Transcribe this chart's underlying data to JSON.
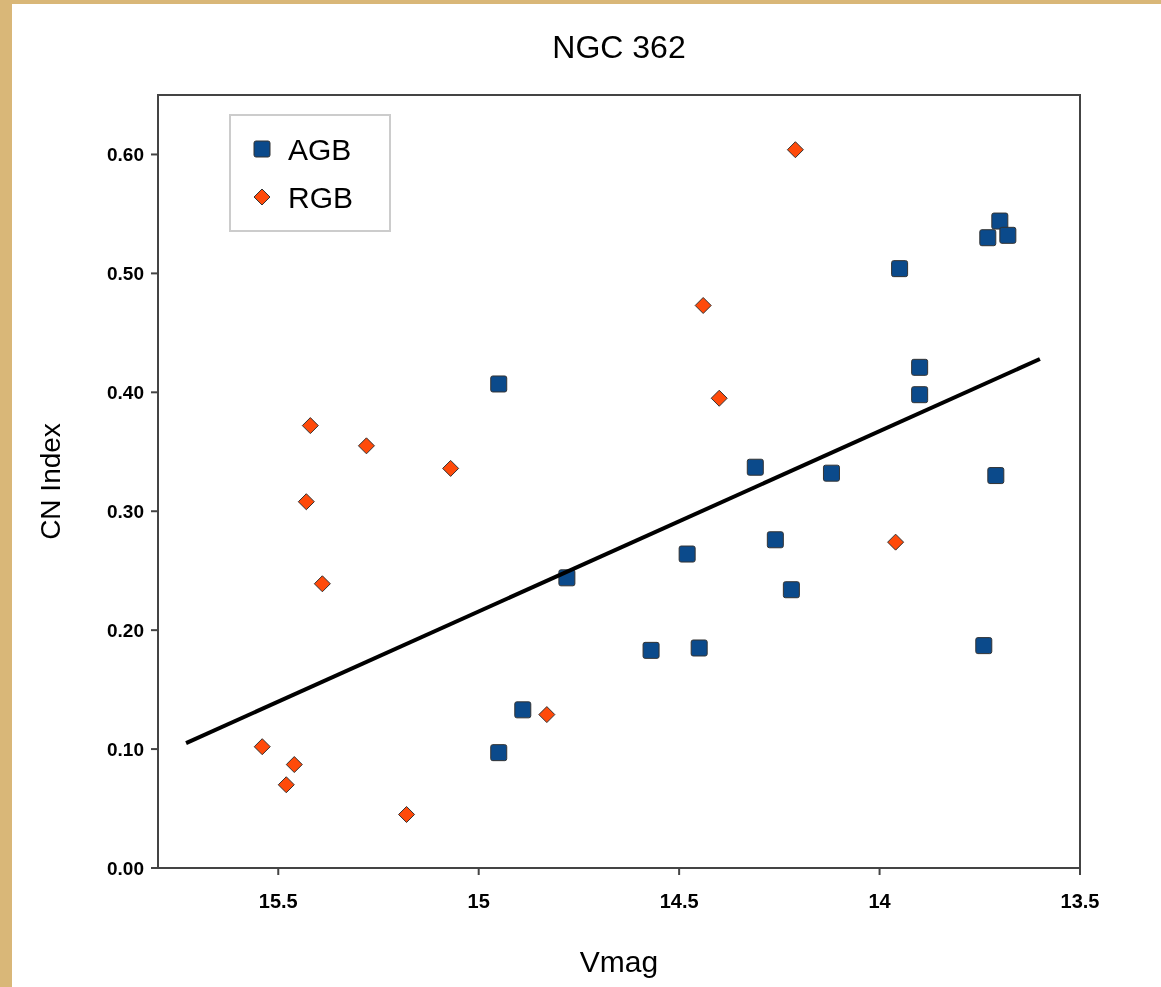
{
  "chart_data": {
    "type": "scatter",
    "title": "NGC 362",
    "xlabel": "Vmag",
    "ylabel": "CN Index",
    "xlim": [
      15.8,
      13.5
    ],
    "xticks": [
      15.5,
      15,
      14.5,
      14,
      13.5
    ],
    "ylim": [
      0,
      0.65
    ],
    "yticks": [
      {
        "value": 0,
        "label": "0.00"
      },
      {
        "value": 0.1,
        "label": "0.10"
      },
      {
        "value": 0.2,
        "label": "0.20"
      },
      {
        "value": 0.3,
        "label": "0.30"
      },
      {
        "value": 0.4,
        "label": "0.40"
      },
      {
        "value": 0.5,
        "label": "0.50"
      },
      {
        "value": 0.6,
        "label": "0.60"
      }
    ],
    "grid": false,
    "legend": "top left",
    "series": [
      {
        "name": "AGB",
        "color": "#0b4a8b",
        "marker": "square",
        "x": [
          13.7,
          13.68,
          13.73,
          13.95,
          13.9,
          13.9,
          14.31,
          14.12,
          13.71,
          14.26,
          14.48,
          14.22,
          14.57,
          14.45,
          13.74,
          14.95,
          14.78,
          14.89,
          14.95
        ],
        "values": [
          0.544,
          0.532,
          0.53,
          0.504,
          0.421,
          0.398,
          0.337,
          0.332,
          0.33,
          0.276,
          0.264,
          0.234,
          0.183,
          0.185,
          0.187,
          0.407,
          0.244,
          0.133,
          0.097
        ]
      },
      {
        "name": "RGB",
        "color": "#ff4a0a",
        "marker": "diamond",
        "x": [
          15.42,
          15.28,
          15.07,
          15.43,
          15.39,
          15.54,
          15.46,
          15.48,
          15.18,
          14.83,
          14.21,
          14.44,
          14.4,
          13.96
        ],
        "values": [
          0.372,
          0.355,
          0.336,
          0.308,
          0.239,
          0.102,
          0.087,
          0.07,
          0.045,
          0.129,
          0.604,
          0.473,
          0.395,
          0.274
        ]
      },
      {
        "type": "line",
        "color": "#000000",
        "marker": "none",
        "x": [
          15.73,
          13.6
        ],
        "values": [
          0.105,
          0.428
        ]
      }
    ]
  }
}
